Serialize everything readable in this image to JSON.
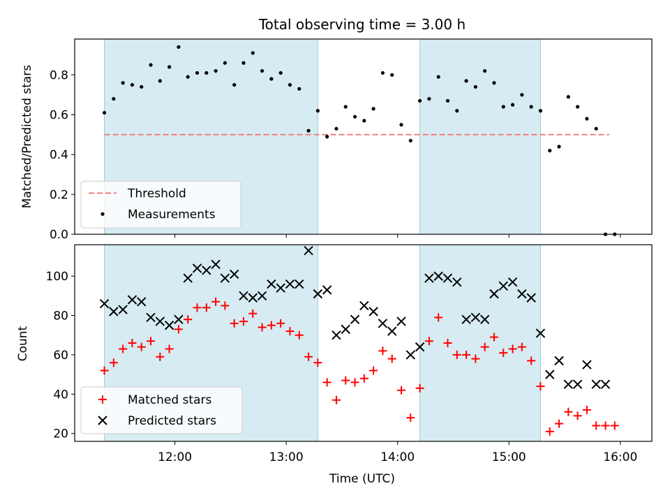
{
  "chart_data": [
    {
      "type": "scatter",
      "title": "Total observing time = 3.00 h",
      "ylabel": "Matched/Predicted stars",
      "xlabel": "",
      "ylim": [
        0,
        0.98
      ],
      "yticks": [
        "0.0",
        "0.2",
        "0.4",
        "0.6",
        "0.8"
      ],
      "legend": {
        "placement": "lower-left",
        "entries": [
          "Threshold",
          "Measurements"
        ]
      },
      "threshold": {
        "name": "Threshold",
        "value": 0.5,
        "x_start": "11:22",
        "x_end": "15:54",
        "color": "#f08080"
      },
      "series": [
        {
          "name": "Measurements",
          "x": [
            "11:22",
            "11:27",
            "11:32",
            "11:37",
            "11:42",
            "11:47",
            "11:52",
            "11:57",
            "12:02",
            "12:07",
            "12:12",
            "12:17",
            "12:22",
            "12:27",
            "12:32",
            "12:37",
            "12:42",
            "12:47",
            "12:52",
            "12:57",
            "13:02",
            "13:07",
            "13:12",
            "13:17",
            "13:22",
            "13:27",
            "13:32",
            "13:37",
            "13:42",
            "13:47",
            "13:52",
            "13:57",
            "14:02",
            "14:07",
            "14:12",
            "14:17",
            "14:22",
            "14:27",
            "14:32",
            "14:37",
            "14:42",
            "14:47",
            "14:52",
            "14:57",
            "15:02",
            "15:07",
            "15:12",
            "15:17",
            "15:22",
            "15:27",
            "15:32",
            "15:37",
            "15:42",
            "15:47",
            "15:52",
            "15:57"
          ],
          "y": [
            0.61,
            0.68,
            0.76,
            0.75,
            0.74,
            0.85,
            0.77,
            0.84,
            0.94,
            0.79,
            0.81,
            0.81,
            0.82,
            0.86,
            0.75,
            0.86,
            0.91,
            0.82,
            0.78,
            0.81,
            0.75,
            0.73,
            0.52,
            0.62,
            0.49,
            0.53,
            0.64,
            0.59,
            0.57,
            0.63,
            0.81,
            0.8,
            0.55,
            0.47,
            0.67,
            0.68,
            0.79,
            0.67,
            0.62,
            0.77,
            0.74,
            0.82,
            0.76,
            0.64,
            0.65,
            0.7,
            0.64,
            0.62,
            0.42,
            0.44,
            0.69,
            0.64,
            0.58,
            0.53,
            0.0,
            0.0
          ],
          "color": "#000000"
        }
      ]
    },
    {
      "type": "scatter",
      "title": "",
      "ylabel": "Count",
      "xlabel": "Time (UTC)",
      "ylim": [
        16,
        116
      ],
      "yticks": [
        "20",
        "40",
        "60",
        "80",
        "100"
      ],
      "xticks": [
        "12:00",
        "13:00",
        "14:00",
        "15:00",
        "16:00"
      ],
      "xlim": [
        "11:06",
        "16:17"
      ],
      "legend": {
        "placement": "lower-left",
        "entries": [
          "Matched stars",
          "Predicted stars"
        ]
      },
      "series": [
        {
          "name": "Matched stars",
          "marker": "plus",
          "color": "#ff0000",
          "x": [
            "11:22",
            "11:27",
            "11:32",
            "11:37",
            "11:42",
            "11:47",
            "11:52",
            "11:57",
            "12:02",
            "12:07",
            "12:12",
            "12:17",
            "12:22",
            "12:27",
            "12:32",
            "12:37",
            "12:42",
            "12:47",
            "12:52",
            "12:57",
            "13:02",
            "13:07",
            "13:12",
            "13:17",
            "13:22",
            "13:27",
            "13:32",
            "13:37",
            "13:42",
            "13:47",
            "13:52",
            "13:57",
            "14:02",
            "14:07",
            "14:12",
            "14:17",
            "14:22",
            "14:27",
            "14:32",
            "14:37",
            "14:42",
            "14:47",
            "14:52",
            "14:57",
            "15:02",
            "15:07",
            "15:12",
            "15:17",
            "15:22",
            "15:27",
            "15:32",
            "15:37",
            "15:42",
            "15:47",
            "15:52",
            "15:57"
          ],
          "values": [
            52,
            56,
            63,
            66,
            64,
            67,
            59,
            63,
            73,
            78,
            84,
            84,
            87,
            85,
            76,
            77,
            81,
            74,
            75,
            76,
            72,
            70,
            59,
            56,
            46,
            37,
            47,
            46,
            48,
            52,
            62,
            58,
            42,
            28,
            43,
            67,
            79,
            66,
            60,
            60,
            58,
            64,
            69,
            61,
            63,
            64,
            57,
            44,
            21,
            25,
            31,
            29,
            32,
            24,
            24,
            24
          ]
        },
        {
          "name": "Predicted stars",
          "marker": "x",
          "color": "#000000",
          "x": [
            "11:22",
            "11:27",
            "11:32",
            "11:37",
            "11:42",
            "11:47",
            "11:52",
            "11:57",
            "12:02",
            "12:07",
            "12:12",
            "12:17",
            "12:22",
            "12:27",
            "12:32",
            "12:37",
            "12:42",
            "12:47",
            "12:52",
            "12:57",
            "13:02",
            "13:07",
            "13:12",
            "13:17",
            "13:22",
            "13:27",
            "13:32",
            "13:37",
            "13:42",
            "13:47",
            "13:52",
            "13:57",
            "14:02",
            "14:07",
            "14:12",
            "14:17",
            "14:22",
            "14:27",
            "14:32",
            "14:37",
            "14:42",
            "14:47",
            "14:52",
            "14:57",
            "15:02",
            "15:07",
            "15:12",
            "15:17",
            "15:22",
            "15:27",
            "15:32",
            "15:37",
            "15:42",
            "15:47",
            "15:52"
          ],
          "values": [
            86,
            82,
            83,
            88,
            87,
            79,
            77,
            75,
            78,
            99,
            104,
            103,
            106,
            99,
            101,
            90,
            89,
            90,
            96,
            94,
            96,
            96,
            113,
            91,
            93,
            70,
            73,
            78,
            85,
            82,
            76,
            72,
            77,
            60,
            64,
            99,
            100,
            99,
            97,
            78,
            79,
            78,
            91,
            95,
            97,
            91,
            89,
            71,
            50,
            57,
            45,
            45,
            55,
            45,
            45
          ]
        }
      ],
      "shaded_intervals": [
        [
          "11:22",
          "13:17"
        ],
        [
          "14:12",
          "15:17"
        ]
      ],
      "shade_color": "#add8e6"
    }
  ]
}
